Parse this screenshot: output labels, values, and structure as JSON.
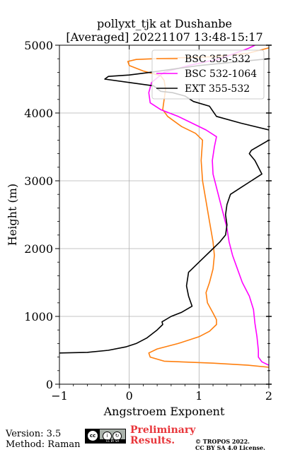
{
  "header": {
    "title_line1": "pollyxt_tjk at Dushanbe",
    "title_line2": "[Averaged] 20221107 13:48-15:17"
  },
  "footer": {
    "version": "Version: 3.5",
    "method": "Method: Raman",
    "preliminary_line1": "Preliminary",
    "preliminary_line2": "Results.",
    "copyright_line1": "© TROPOS 2022.",
    "copyright_line2": "CC BY SA 4.0 License.",
    "license_badge": "CC BY SA"
  },
  "chart_data": {
    "type": "line",
    "xlabel": "Angstroem Exponent",
    "ylabel": "Height (m)",
    "xlim": [
      -1,
      2
    ],
    "ylim": [
      0,
      5000
    ],
    "x_ticks": [
      -1,
      0,
      1,
      2
    ],
    "x_tick_labels": [
      "−1",
      "0",
      "1",
      "2"
    ],
    "y_ticks": [
      0,
      1000,
      2000,
      3000,
      4000,
      5000
    ],
    "y_tick_labels": [
      "0",
      "1000",
      "2000",
      "3000",
      "4000",
      "5000"
    ],
    "grid": true,
    "legend_position": "top-right",
    "series": [
      {
        "name": "BSC 355-532",
        "color": "#ff7f0e",
        "points": [
          [
            2.0,
            250
          ],
          [
            1.7,
            280
          ],
          [
            1.2,
            310
          ],
          [
            0.5,
            340
          ],
          [
            0.3,
            400
          ],
          [
            0.28,
            460
          ],
          [
            0.4,
            520
          ],
          [
            0.7,
            600
          ],
          [
            1.0,
            700
          ],
          [
            1.15,
            780
          ],
          [
            1.25,
            880
          ],
          [
            1.25,
            950
          ],
          [
            1.2,
            1050
          ],
          [
            1.12,
            1200
          ],
          [
            1.1,
            1350
          ],
          [
            1.15,
            1500
          ],
          [
            1.2,
            1700
          ],
          [
            1.22,
            1900
          ],
          [
            1.2,
            2100
          ],
          [
            1.15,
            2400
          ],
          [
            1.1,
            2700
          ],
          [
            1.05,
            3000
          ],
          [
            1.03,
            3300
          ],
          [
            1.05,
            3600
          ],
          [
            0.95,
            3700
          ],
          [
            0.75,
            3800
          ],
          [
            0.55,
            3950
          ],
          [
            0.48,
            4050
          ],
          [
            0.5,
            4200
          ],
          [
            0.52,
            4350
          ],
          [
            0.5,
            4480
          ],
          [
            0.45,
            4550
          ],
          [
            0.2,
            4620
          ],
          [
            0.0,
            4700
          ],
          [
            -0.02,
            4760
          ],
          [
            0.1,
            4790
          ],
          [
            0.6,
            4810
          ],
          [
            1.2,
            4830
          ],
          [
            1.7,
            4880
          ],
          [
            2.0,
            4960
          ]
        ]
      },
      {
        "name": "BSC 532-1064",
        "color": "#ff00ff",
        "points": [
          [
            2.0,
            280
          ],
          [
            1.9,
            330
          ],
          [
            1.85,
            400
          ],
          [
            1.85,
            500
          ],
          [
            1.83,
            700
          ],
          [
            1.8,
            900
          ],
          [
            1.78,
            1100
          ],
          [
            1.72,
            1300
          ],
          [
            1.62,
            1500
          ],
          [
            1.55,
            1700
          ],
          [
            1.48,
            1900
          ],
          [
            1.43,
            2100
          ],
          [
            1.4,
            2300
          ],
          [
            1.35,
            2500
          ],
          [
            1.3,
            2700
          ],
          [
            1.25,
            2900
          ],
          [
            1.2,
            3100
          ],
          [
            1.19,
            3300
          ],
          [
            1.22,
            3500
          ],
          [
            1.25,
            3650
          ],
          [
            1.1,
            3750
          ],
          [
            0.9,
            3850
          ],
          [
            0.7,
            3950
          ],
          [
            0.45,
            4050
          ],
          [
            0.3,
            4150
          ],
          [
            0.28,
            4300
          ],
          [
            0.32,
            4450
          ],
          [
            0.5,
            4600
          ],
          [
            0.85,
            4700
          ],
          [
            1.3,
            4800
          ],
          [
            1.7,
            4950
          ],
          [
            1.8,
            5000
          ]
        ]
      },
      {
        "name": "EXT 355-532",
        "color": "#000000",
        "points": [
          [
            -1.0,
            460
          ],
          [
            -0.6,
            470
          ],
          [
            -0.3,
            500
          ],
          [
            -0.05,
            550
          ],
          [
            0.1,
            600
          ],
          [
            0.25,
            680
          ],
          [
            0.4,
            800
          ],
          [
            0.48,
            880
          ],
          [
            0.47,
            920
          ],
          [
            0.6,
            1000
          ],
          [
            0.75,
            1060
          ],
          [
            0.9,
            1150
          ],
          [
            0.85,
            1300
          ],
          [
            0.82,
            1450
          ],
          [
            0.85,
            1650
          ],
          [
            1.0,
            1800
          ],
          [
            1.2,
            2000
          ],
          [
            1.3,
            2100
          ],
          [
            1.38,
            2200
          ],
          [
            1.4,
            2350
          ],
          [
            1.38,
            2500
          ],
          [
            1.4,
            2650
          ],
          [
            1.45,
            2800
          ],
          [
            1.6,
            2900
          ],
          [
            1.75,
            3000
          ],
          [
            1.9,
            3100
          ],
          [
            1.85,
            3200
          ],
          [
            1.8,
            3300
          ],
          [
            1.72,
            3400
          ],
          [
            1.75,
            3450
          ],
          [
            2.0,
            3600
          ],
          [
            2.2,
            3650
          ],
          [
            2.0,
            3750
          ],
          [
            1.6,
            3850
          ],
          [
            1.25,
            3950
          ],
          [
            1.15,
            4100
          ],
          [
            0.92,
            4170
          ],
          [
            0.8,
            4250
          ],
          [
            0.62,
            4300
          ],
          [
            0.45,
            4320
          ],
          [
            0.35,
            4400
          ],
          [
            0.0,
            4450
          ],
          [
            -0.35,
            4500
          ],
          [
            -0.3,
            4540
          ],
          [
            0.0,
            4560
          ],
          [
            0.3,
            4600
          ],
          [
            1.0,
            4700
          ],
          [
            2.0,
            4800
          ]
        ]
      }
    ]
  }
}
